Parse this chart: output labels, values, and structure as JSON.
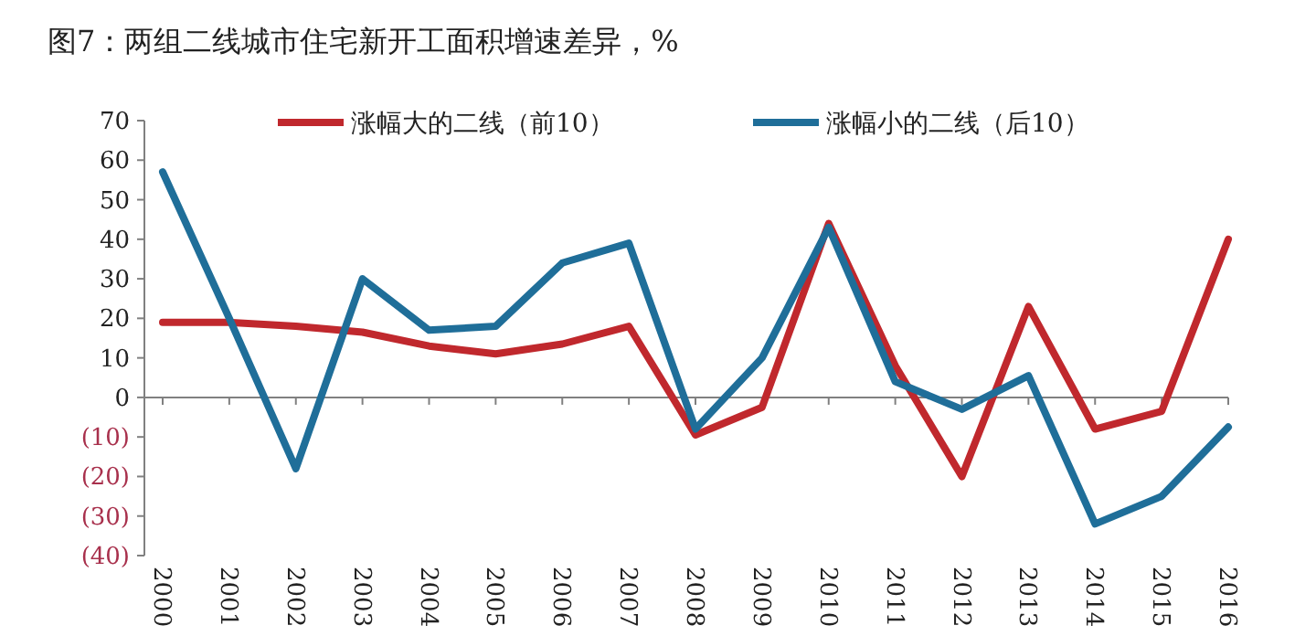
{
  "chart_data": {
    "type": "line",
    "title": "图7：两组二线城市住宅新开工面积增速差异，%",
    "categories": [
      "2000",
      "2001",
      "2002",
      "2003",
      "2004",
      "2005",
      "2006",
      "2007",
      "2008",
      "2009",
      "2010",
      "2011",
      "2012",
      "2013",
      "2014",
      "2015",
      "2016"
    ],
    "series": [
      {
        "name": "涨幅大的二线（前10）",
        "color": "#c0282d",
        "values": [
          19,
          19,
          18,
          16.5,
          13,
          11,
          13.5,
          18,
          -9.5,
          -2.5,
          44,
          8,
          -20,
          23,
          -8,
          -3.5,
          40
        ]
      },
      {
        "name": "涨幅小的二线（后10）",
        "color": "#1f6e99",
        "values": [
          57,
          20,
          -18,
          30,
          17,
          18,
          34,
          39,
          -8,
          10,
          43,
          4,
          -3,
          5.5,
          -32,
          -25,
          -7.5
        ]
      }
    ],
    "ylim": [
      -40,
      70
    ],
    "yticks": [
      {
        "value": -40,
        "label": "(40)"
      },
      {
        "value": -30,
        "label": "(30)"
      },
      {
        "value": -20,
        "label": "(20)"
      },
      {
        "value": -10,
        "label": "(10)"
      },
      0,
      10,
      20,
      30,
      40,
      50,
      60,
      70
    ],
    "legend": "top",
    "marker": "none",
    "line_style": "solid"
  }
}
